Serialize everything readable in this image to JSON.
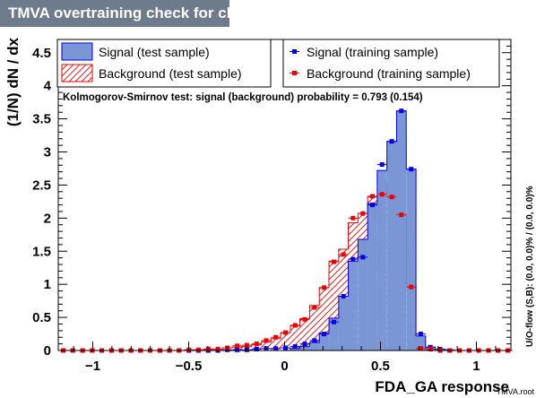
{
  "window": {
    "title": "TMVA overtraining check for classifier: FDA_GA"
  },
  "legend": {
    "signal_test": "Signal (test sample)",
    "background_test": "Background (test sample)",
    "signal_training": "Signal (training sample)",
    "background_training": "Background (training sample)"
  },
  "ks_text": "Kolmogorov-Smirnov test: signal (background) probability = 0.793 (0.154)",
  "overflow_text": "U/O-flow (S,B): (0.0, 0.0)% / (0.0, 0.0)%",
  "watermark": "TMVA.root",
  "chart_data": {
    "type": "bar",
    "title": "TMVA overtraining check for classifier: FDA_GA",
    "xlabel": "FDA_GA response",
    "ylabel": "(1/N) dN / dx",
    "xlim": [
      -1.18,
      1.18
    ],
    "ylim": [
      0,
      4.7
    ],
    "x_ticks": [
      -1,
      -0.5,
      0,
      0.5,
      1
    ],
    "x_tick_labels": [
      "−1",
      "−0.5",
      "0",
      "0.5",
      "1"
    ],
    "y_ticks": [
      0,
      0.5,
      1,
      1.5,
      2,
      2.5,
      3,
      3.5,
      4,
      4.5
    ],
    "y_tick_labels": [
      "0",
      "0.5",
      "1",
      "1.5",
      "2",
      "2.5",
      "3",
      "3.5",
      "4",
      "4.5"
    ],
    "bin_width": 0.0504,
    "bin_centers": [
      -1.154,
      -1.104,
      -1.053,
      -1.003,
      -0.953,
      -0.902,
      -0.852,
      -0.801,
      -0.751,
      -0.701,
      -0.65,
      -0.6,
      -0.55,
      -0.499,
      -0.449,
      -0.398,
      -0.348,
      -0.298,
      -0.247,
      -0.197,
      -0.146,
      -0.096,
      -0.046,
      0.005,
      0.055,
      0.105,
      0.156,
      0.206,
      0.257,
      0.307,
      0.357,
      0.408,
      0.458,
      0.508,
      0.559,
      0.609,
      0.66,
      0.71,
      0.76,
      0.811,
      0.861,
      0.912,
      0.962,
      1.012,
      1.063,
      1.113,
      1.164
    ],
    "series": [
      {
        "name": "Signal (test sample)",
        "style": "filled-histogram",
        "color": "#7b96d4",
        "line_color": "#0000ee",
        "values": [
          0,
          0,
          0,
          0,
          0,
          0,
          0,
          0,
          0,
          0,
          0,
          0,
          0,
          0,
          0,
          0,
          0,
          0,
          0,
          0,
          0,
          0,
          0,
          0,
          0.03,
          0.06,
          0.12,
          0.26,
          0.49,
          0.82,
          1.35,
          1.68,
          2.22,
          2.72,
          3.16,
          3.62,
          2.74,
          0.22,
          0.05,
          0.02,
          0.01,
          0,
          0,
          0,
          0,
          0,
          0
        ]
      },
      {
        "name": "Background (test sample)",
        "style": "hatched-histogram",
        "color": "#ee0000",
        "values": [
          0,
          0,
          0,
          0,
          0,
          0,
          0,
          0,
          0,
          0,
          0,
          0,
          0,
          0,
          0.01,
          0.01,
          0.02,
          0.04,
          0.05,
          0.06,
          0.09,
          0.13,
          0.18,
          0.27,
          0.37,
          0.48,
          0.68,
          0.95,
          1.35,
          1.53,
          1.93,
          2.07,
          2.32,
          2.34,
          2.53,
          2.06,
          0.97,
          0.04,
          0.01,
          0,
          0,
          0,
          0,
          0,
          0,
          0,
          0
        ]
      },
      {
        "name": "Signal (training sample)",
        "style": "markers",
        "color": "#0000ee",
        "values": [
          0,
          0,
          0,
          0,
          0,
          0,
          0,
          0,
          0,
          0,
          0,
          0,
          0,
          0,
          0,
          0,
          0,
          0.01,
          0.01,
          0.01,
          0.02,
          0.03,
          0.03,
          0.04,
          0.06,
          0.1,
          0.15,
          0.25,
          0.43,
          0.82,
          1.38,
          1.41,
          2.2,
          2.81,
          3.16,
          3.62,
          2.74,
          0.25,
          0.05,
          0.02,
          0,
          0,
          0,
          0,
          0,
          0,
          0
        ]
      },
      {
        "name": "Background (training sample)",
        "style": "markers",
        "color": "#ee0000",
        "values": [
          0,
          0,
          0,
          0,
          0,
          0,
          0,
          0,
          0,
          0,
          0,
          0,
          0,
          0.01,
          0.01,
          0.02,
          0.02,
          0.04,
          0.07,
          0.08,
          0.1,
          0.15,
          0.2,
          0.27,
          0.38,
          0.47,
          0.65,
          0.95,
          1.34,
          1.45,
          2.0,
          2.07,
          2.33,
          2.36,
          2.32,
          2.05,
          0.96,
          0.03,
          0.02,
          0,
          0,
          0,
          0,
          0,
          0,
          0,
          0
        ]
      }
    ],
    "legend_position": "top",
    "grid": false
  }
}
